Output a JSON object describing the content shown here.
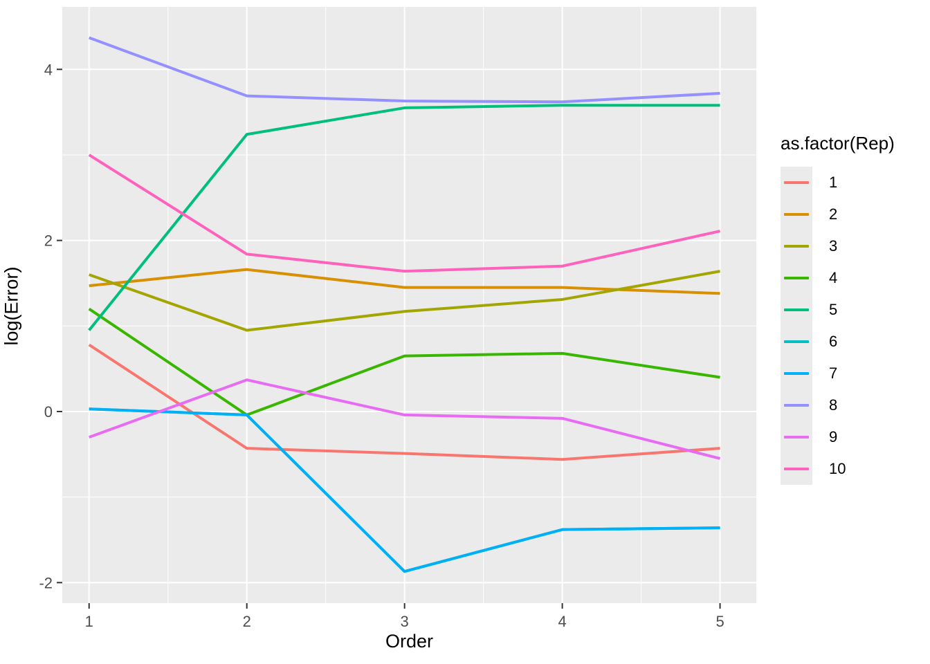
{
  "figure": {
    "background": "#FFFFFF",
    "panel_background": "#EBEBEB",
    "grid_color": "#FFFFFF",
    "axis_text_color": "#4D4D4D",
    "tick_mark_color": "#333333"
  },
  "chart_data": {
    "type": "line",
    "title": "",
    "xlabel": "Order",
    "ylabel": "log(Error)",
    "legend_title": "as.factor(Rep)",
    "legend_position": "right",
    "grid": true,
    "x": [
      1,
      2,
      3,
      4,
      5
    ],
    "x_ticks": [
      "1",
      "2",
      "3",
      "4",
      "5"
    ],
    "y_ticks": [
      "-2",
      "0",
      "2",
      "4"
    ],
    "y_tick_values": [
      -2,
      0,
      2,
      4
    ],
    "x_minor": [
      1.5,
      2.5,
      3.5,
      4.5
    ],
    "y_minor": [
      -1,
      1,
      3
    ],
    "xlim": [
      0.83,
      5.23
    ],
    "ylim": [
      -2.24,
      4.73
    ],
    "series": [
      {
        "name": "1",
        "color": "#F8766D",
        "values": [
          0.78,
          -0.43,
          -0.49,
          -0.56,
          -0.43
        ]
      },
      {
        "name": "2",
        "color": "#D89000",
        "values": [
          1.47,
          1.66,
          1.45,
          1.45,
          1.38
        ]
      },
      {
        "name": "3",
        "color": "#A3A500",
        "values": [
          1.6,
          0.95,
          1.17,
          1.31,
          1.64
        ]
      },
      {
        "name": "4",
        "color": "#39B600",
        "values": [
          1.2,
          -0.04,
          0.65,
          0.68,
          0.4
        ]
      },
      {
        "name": "5",
        "color": "#00BF7D",
        "values": [
          0.95,
          3.24,
          3.55,
          3.58,
          3.58
        ]
      },
      {
        "name": "6",
        "color": "#00BFC4",
        "values": [
          0.03,
          -0.04,
          -1.87,
          -1.38,
          -1.36
        ]
      },
      {
        "name": "7",
        "color": "#00B0F6",
        "values": [
          0.03,
          -0.04,
          -1.87,
          -1.38,
          -1.36
        ]
      },
      {
        "name": "8",
        "color": "#9590FF",
        "values": [
          4.37,
          3.69,
          3.63,
          3.62,
          3.72
        ]
      },
      {
        "name": "9",
        "color": "#E76BF3",
        "values": [
          -0.3,
          0.37,
          -0.04,
          -0.08,
          -0.55
        ]
      },
      {
        "name": "10",
        "color": "#FF62BC",
        "values": [
          3.0,
          1.84,
          1.64,
          1.7,
          2.11
        ]
      }
    ]
  }
}
